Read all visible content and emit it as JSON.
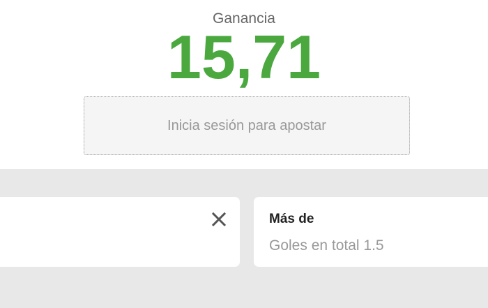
{
  "summary": {
    "label": "Ganancia",
    "amount": "15,71",
    "amount_color": "#4aa83f"
  },
  "login_button": "Inicia sesión para apostar",
  "selections": [
    {
      "close_icon": "close-icon"
    },
    {
      "title": "Más de",
      "subtitle": "Goles en total 1.5"
    }
  ]
}
